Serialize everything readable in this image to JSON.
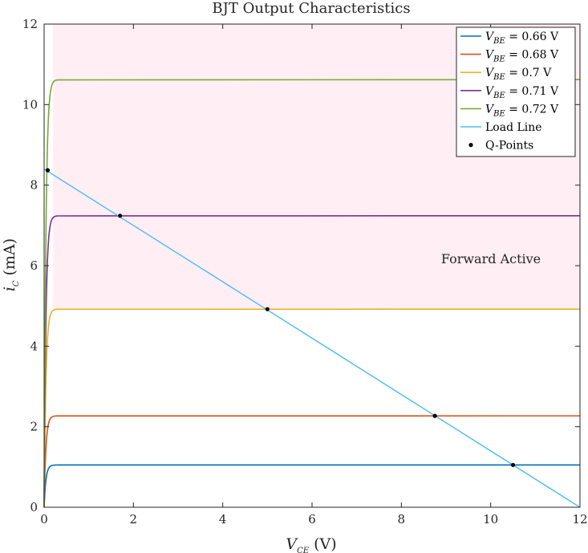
{
  "chart_data": {
    "type": "line",
    "title": "BJT Output Characteristics",
    "xlabel": {
      "main": "V",
      "sub": "CE",
      "unit": " (V)"
    },
    "ylabel": {
      "main": "i",
      "sub": "C",
      "unit": " (mA)"
    },
    "xlim": [
      0,
      12
    ],
    "ylim": [
      0,
      12
    ],
    "xticks": [
      "0",
      "2",
      "4",
      "6",
      "8",
      "10",
      "12"
    ],
    "yticks": [
      "0",
      "2",
      "4",
      "6",
      "8",
      "10",
      "12"
    ],
    "grid": false,
    "legend_position": "top-right",
    "region": {
      "label": "Forward Active",
      "x": [
        0.2,
        12
      ],
      "y": [
        4.92,
        12
      ],
      "color": "#ffeef4"
    },
    "vce_sat": 0.2,
    "series": [
      {
        "legend_main": "V",
        "legend_sub": "BE",
        "legend_value": " = 0.66 V",
        "ic_sat": 1.05,
        "color": "#0072bd"
      },
      {
        "legend_main": "V",
        "legend_sub": "BE",
        "legend_value": " = 0.68 V",
        "ic_sat": 2.27,
        "color": "#d95319"
      },
      {
        "legend_main": "V",
        "legend_sub": "BE",
        "legend_value": " = 0.7 V",
        "ic_sat": 4.92,
        "color": "#edb120"
      },
      {
        "legend_main": "V",
        "legend_sub": "BE",
        "legend_value": " = 0.71 V",
        "ic_sat": 7.24,
        "color": "#7e2f8e"
      },
      {
        "legend_main": "V",
        "legend_sub": "BE",
        "legend_value": " = 0.72 V",
        "ic_sat": 10.62,
        "color": "#77ac30"
      }
    ],
    "load_line": {
      "name": "Load Line",
      "x": [
        0,
        12
      ],
      "y": [
        8.4,
        0
      ],
      "color": "#4dbeee"
    },
    "q_points": {
      "name": "Q-Points",
      "color": "#000000",
      "x": [
        10.5,
        8.75,
        5.0,
        1.7,
        0.08
      ],
      "y": [
        1.05,
        2.27,
        4.92,
        7.24,
        8.37
      ]
    }
  }
}
